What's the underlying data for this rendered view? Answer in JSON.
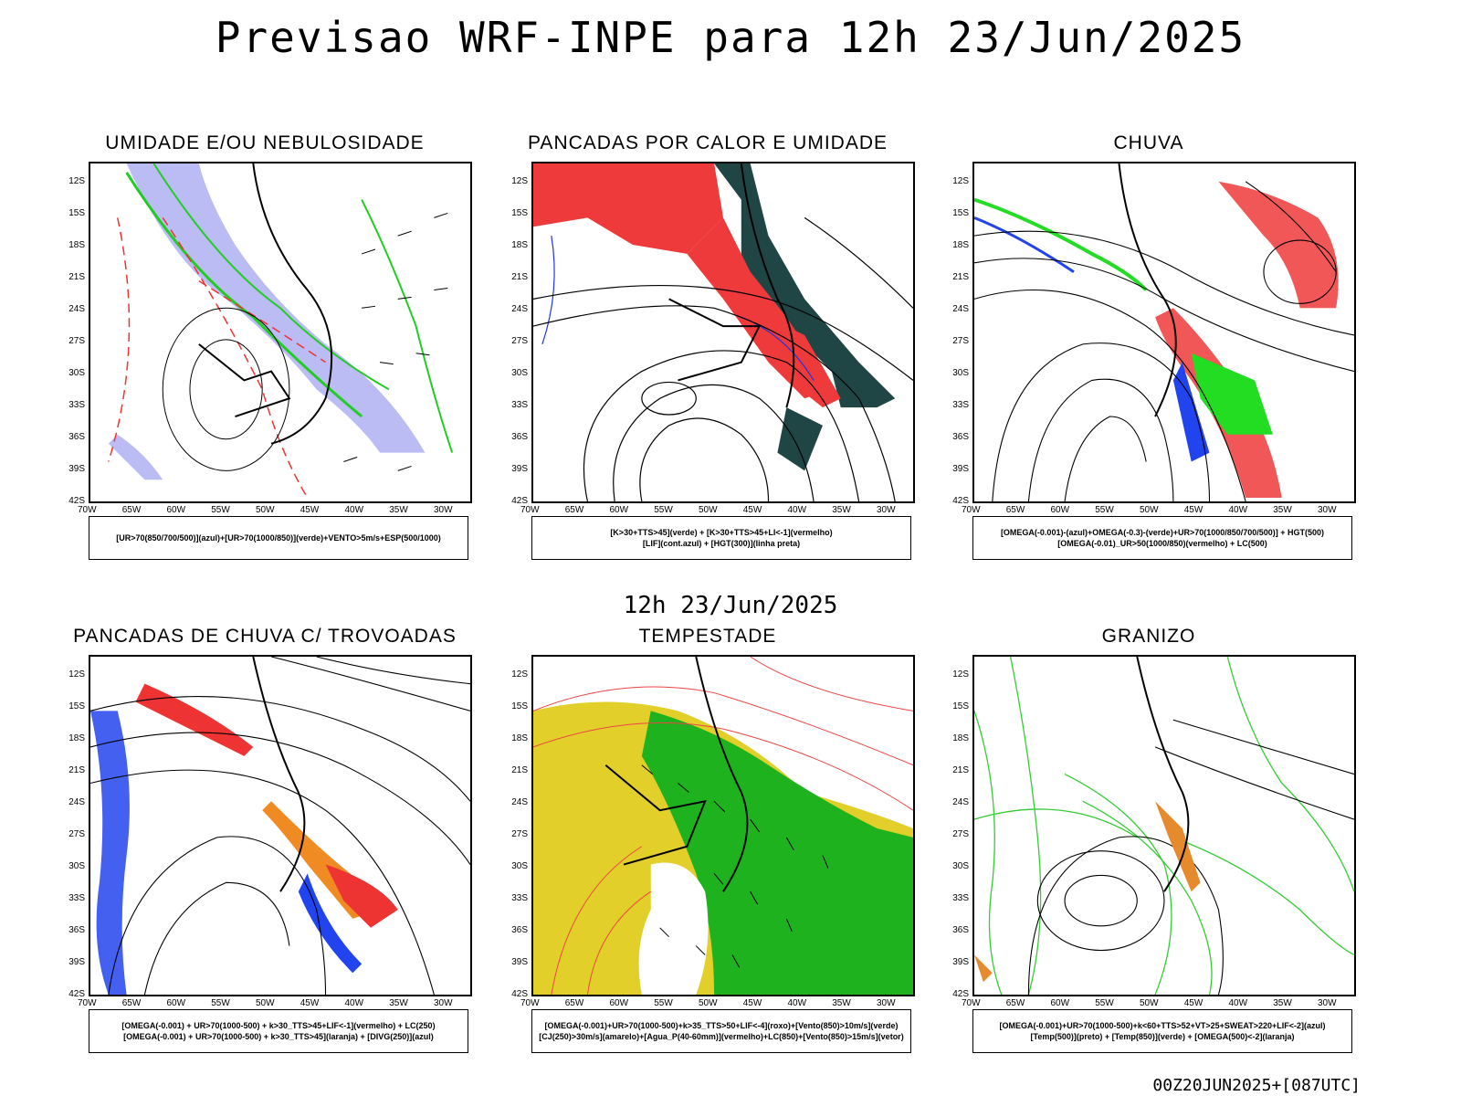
{
  "header": {
    "title": "Previsao WRF-INPE  para 12h 23/Jun/2025",
    "mid_label": "12h 23/Jun/2025",
    "footer": "00Z20JUN2025+[087UTC]"
  },
  "axes": {
    "lat_labels": [
      "12S",
      "15S",
      "18S",
      "21S",
      "24S",
      "27S",
      "30S",
      "33S",
      "36S",
      "39S",
      "42S"
    ],
    "lon_labels": [
      "70W",
      "65W",
      "60W",
      "55W",
      "50W",
      "45W",
      "40W",
      "35W",
      "30W"
    ]
  },
  "panels": [
    {
      "id": "umidade",
      "title": "UMIDADE E/OU NEBULOSIDADE",
      "legend": [
        "[UR>70(850/700/500)](azul)+[UR>70(1000/850)](verde)+VENTO>5m/s+ESP(500/1000)"
      ],
      "colors": {
        "blue": "#9ea0f0",
        "green": "#22cc22",
        "red": "#ee3333"
      }
    },
    {
      "id": "pancadas-calor",
      "title": "PANCADAS POR CALOR E UMIDADE",
      "legend": [
        "[K>30+TTS>45](verde) + [K>30+TTS>45+LI<-1](vermelho)",
        "[LIF](cont.azul) + [HGT(300)](linha preta)"
      ],
      "colors": {
        "dark": "#1f4545",
        "red": "#ee3a3a",
        "blue": "#2233dd"
      }
    },
    {
      "id": "chuva",
      "title": "CHUVA",
      "legend": [
        "[OMEGA(-0.001)-(azul)+OMEGA(-0.3)-(verde)+UR>70(1000/850/700/500)] + HGT(500)",
        "[OMEGA(-0.01)_UR>50(1000/850)(vermelho) + LC(500)"
      ],
      "colors": {
        "red": "#ee3a3a",
        "green": "#22dd22",
        "blue": "#2244ee"
      }
    },
    {
      "id": "pancadas-trovoadas",
      "title": "PANCADAS DE CHUVA C/ TROVOADAS",
      "legend": [
        "[OMEGA(-0.001) + UR>70(1000-500) + k>30_TTS>45+LIF<-1](vermelho) + LC(250)",
        "[OMEGA(-0.001) + UR>70(1000-500) + k>30_TTS>45](laranja) + [DIVG(250)](azul)"
      ],
      "colors": {
        "red": "#ee3333",
        "orange": "#f08a22",
        "blue": "#2244ee"
      }
    },
    {
      "id": "tempestade",
      "title": "TEMPESTADE",
      "legend": [
        "[OMEGA(-0.001)+UR>70(1000-500)+k>35_TTS>50+LIF<-4](roxo)+[Vento(850)>10m/s](verde)",
        "[CJ(250)>30m/s](amarelo)+[Agua_P(40-60mm)](vermelho)+LC(850)+[Vento(850)>15m/s](vetor)"
      ],
      "colors": {
        "yellow": "#e2cf2a",
        "green": "#1fb21f",
        "red": "#ee4444"
      }
    },
    {
      "id": "granizo",
      "title": "GRANIZO",
      "legend": [
        "[OMEGA(-0.001)+UR>70(1000-500)+k<60+TTS>52+VT>25+SWEAT>220+LIF<-2](azul)",
        "[Temp(500)](preto) + [Temp(850)](verde) + [OMEGA(500)<-2](laranja)"
      ],
      "colors": {
        "green": "#33cc33",
        "orange": "#e68a2e",
        "black": "#000000"
      }
    }
  ]
}
